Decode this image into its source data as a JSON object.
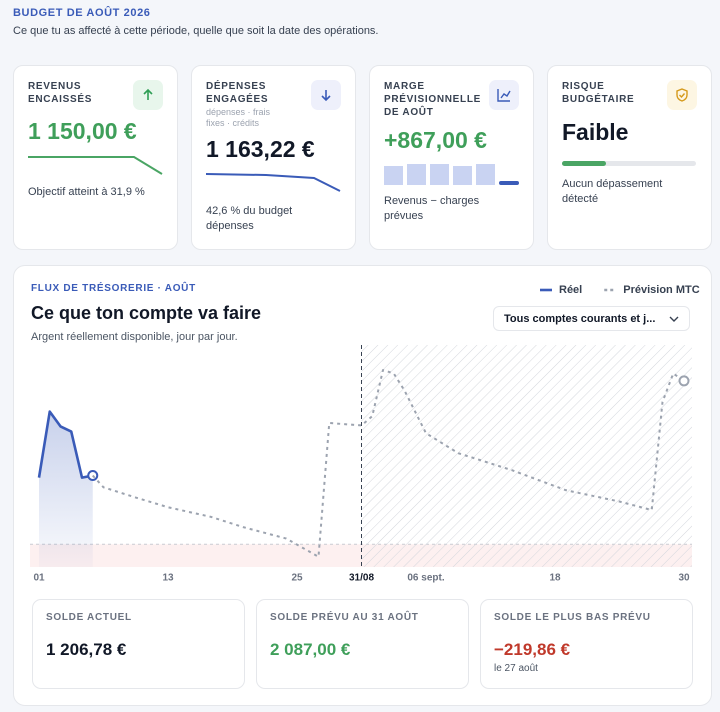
{
  "header": {
    "title": "BUDGET DE AOÛT 2026",
    "subtitle": "Ce que tu as affecté à cette période, quelle que soit la date des opérations."
  },
  "cards": [
    {
      "label": "REVENUS ENCAISSÉS",
      "value": "1 150,00 €",
      "note": "Objectif atteint à 31,9 %"
    },
    {
      "label": "DÉPENSES ENGAGÉES",
      "hint": "dépenses · frais fixes · crédits",
      "value": "1 163,22 €",
      "note": "42,6 % du budget dépenses"
    },
    {
      "label": "MARGE PRÉVISIONNELLE DE AOÛT",
      "value": "+867,00 €",
      "note": "Revenus − charges prévues"
    },
    {
      "label": "RISQUE BUDGÉTAIRE",
      "value": "Faible",
      "note": "Aucun dépassement détecté"
    }
  ],
  "chart_panel": {
    "kicker": "FLUX DE TRÉSORERIE · AOÛT",
    "title": "Ce que ton compte va faire",
    "subtitle": "Argent réellement disponible, jour par jour.",
    "account_filter": "Tous comptes courants et j..."
  },
  "chart_data": {
    "type": "line",
    "series": [
      {
        "name": "Réel",
        "color": "#3a5bb8",
        "x": [
          1,
          2,
          3,
          4,
          5,
          6
        ],
        "values": [
          1170,
          2330,
          2070,
          1980,
          1170,
          1206.78
        ]
      },
      {
        "name": "Prévision MTC",
        "color": "#9ca3af",
        "dashed": true,
        "x": [
          6,
          7,
          10,
          13,
          17,
          20,
          24,
          27,
          28,
          31,
          32,
          33,
          34,
          35,
          37,
          40,
          45,
          50,
          55,
          58,
          59,
          60,
          61
        ],
        "values": [
          1206.78,
          1000,
          820,
          650,
          480,
          300,
          100,
          -219.86,
          2130,
          2087,
          2250,
          3060,
          3000,
          2700,
          1950,
          1600,
          1300,
          950,
          750,
          600,
          2500,
          3000,
          2870
        ]
      }
    ],
    "xlim": [
      1,
      61
    ],
    "xticks": [
      {
        "value": 1,
        "label": "01"
      },
      13,
      25,
      {
        "value": 31,
        "label": "31/08"
      },
      {
        "value": 37,
        "label": "06 sept."
      },
      {
        "value": 49,
        "label": "18"
      },
      {
        "value": 61,
        "label": "30"
      }
    ],
    "ylim": [
      -400,
      3500
    ]
  },
  "summary": [
    {
      "label": "SOLDE ACTUEL",
      "value": "1 206,78 €"
    },
    {
      "label": "SOLDE PRÉVU AU 31 AOÛT",
      "value": "2 087,00 €"
    },
    {
      "label": "SOLDE LE PLUS BAS PRÉVU",
      "value": "−219,86 €",
      "note": "le 27 août"
    }
  ]
}
